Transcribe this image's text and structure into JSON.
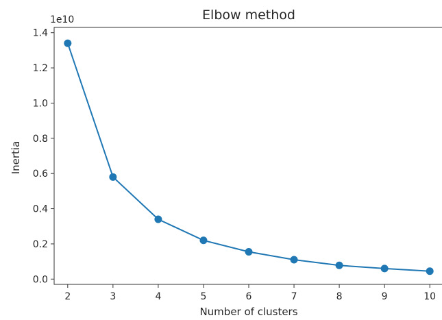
{
  "chart_data": {
    "type": "line",
    "title": "Elbow method",
    "xlabel": "Number of clusters",
    "ylabel": "Inertia",
    "y_offset_label": "1e10",
    "xlim": [
      1.7,
      10.3
    ],
    "ylim": [
      -0.03,
      1.43
    ],
    "x_ticks": [
      2,
      3,
      4,
      5,
      6,
      7,
      8,
      9,
      10
    ],
    "y_ticks": [
      0.0,
      0.2,
      0.4,
      0.6,
      0.8,
      1.0,
      1.2,
      1.4
    ],
    "grid": false,
    "marker": "circle",
    "color": "#1f77b4",
    "series": [
      {
        "x": [
          2,
          3,
          4,
          5,
          6,
          7,
          8,
          9,
          10
        ],
        "y": [
          1.34,
          0.58,
          0.34,
          0.22,
          0.155,
          0.11,
          0.078,
          0.06,
          0.045
        ]
      }
    ]
  }
}
